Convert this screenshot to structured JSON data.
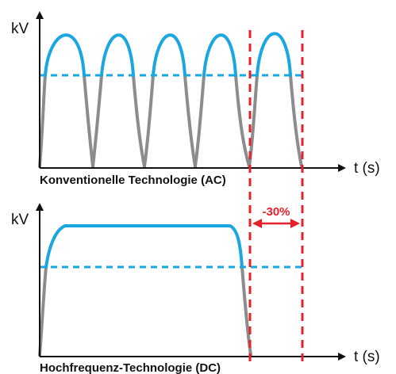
{
  "colors": {
    "waveform": "#1aa7e0",
    "waveform_under": "#8c8c8c",
    "threshold": "#1aa7e0",
    "marker": "#e8202a",
    "axis": "#111111",
    "text": "#111111"
  },
  "top_panel": {
    "y_axis_label": "kV",
    "x_axis_label": "t (s)",
    "caption": "Konventionelle Technologie (AC)"
  },
  "bottom_panel": {
    "y_axis_label": "kV",
    "x_axis_label": "t (s)",
    "caption": "Hochfrequenz-Technologie (DC)"
  },
  "annotation": {
    "reduction_label": "-30%"
  }
}
